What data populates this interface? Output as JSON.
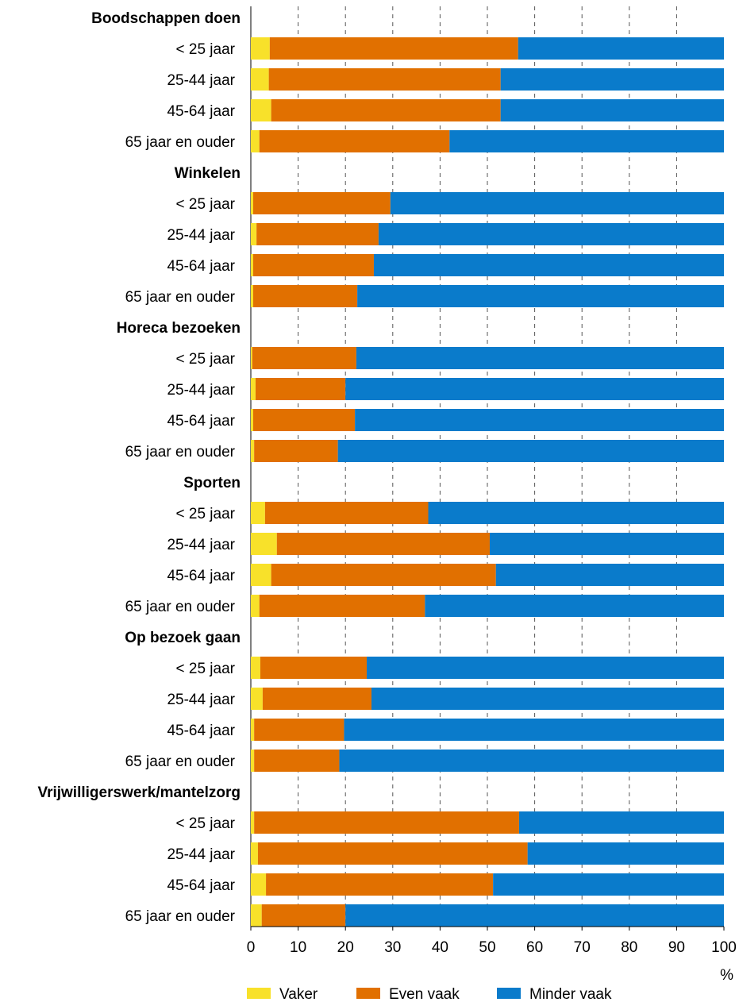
{
  "chart_data": {
    "type": "bar",
    "orientation": "horizontal",
    "stacked": true,
    "percent_stacked": true,
    "xlim": [
      0,
      100
    ],
    "xticks": [
      "0",
      "10",
      "20",
      "30",
      "40",
      "50",
      "60",
      "70",
      "80",
      "90",
      "100"
    ],
    "xunit": "%",
    "grid": "vertical dashed",
    "legend_position": "bottom",
    "colors": {
      "Vaker": "#f8e12a",
      "Even vaak": "#e17000",
      "Minder vaak": "#0a7bcb"
    },
    "series_names": [
      "Vaker",
      "Even vaak",
      "Minder vaak"
    ],
    "groups": [
      {
        "name": "Boodschappen doen",
        "rows": [
          {
            "label": "< 25 jaar",
            "values": [
              4,
              52.5,
              43.5
            ]
          },
          {
            "label": "25-44 jaar",
            "values": [
              3.8,
              49,
              47.2
            ]
          },
          {
            "label": "45-64 jaar",
            "values": [
              4.3,
              48.5,
              47.2
            ]
          },
          {
            "label": "65 jaar en ouder",
            "values": [
              1.8,
              40.2,
              58
            ]
          }
        ]
      },
      {
        "name": "Winkelen",
        "rows": [
          {
            "label": "< 25 jaar",
            "values": [
              0.5,
              29,
              70.5
            ]
          },
          {
            "label": "25-44 jaar",
            "values": [
              1.2,
              25.8,
              73
            ]
          },
          {
            "label": "45-64 jaar",
            "values": [
              0.5,
              25.5,
              74
            ]
          },
          {
            "label": "65 jaar en ouder",
            "values": [
              0.5,
              22,
              77.5
            ]
          }
        ]
      },
      {
        "name": "Horeca bezoeken",
        "rows": [
          {
            "label": "< 25 jaar",
            "values": [
              0.3,
              22,
              77.7
            ]
          },
          {
            "label": "25-44 jaar",
            "values": [
              1,
              19,
              80
            ]
          },
          {
            "label": "45-64 jaar",
            "values": [
              0.5,
              21.5,
              78
            ]
          },
          {
            "label": "65 jaar en ouder",
            "values": [
              0.7,
              17.7,
              81.6
            ]
          }
        ]
      },
      {
        "name": "Sporten",
        "rows": [
          {
            "label": "< 25 jaar",
            "values": [
              3,
              34.5,
              62.5
            ]
          },
          {
            "label": "25-44 jaar",
            "values": [
              5.5,
              45,
              49.5
            ]
          },
          {
            "label": "45-64 jaar",
            "values": [
              4.3,
              47.5,
              48.2
            ]
          },
          {
            "label": "65 jaar en ouder",
            "values": [
              1.8,
              35,
              63.2
            ]
          }
        ]
      },
      {
        "name": "Op bezoek gaan",
        "rows": [
          {
            "label": "< 25 jaar",
            "values": [
              2,
              22.5,
              75.5
            ]
          },
          {
            "label": "25-44 jaar",
            "values": [
              2.5,
              23,
              74.5
            ]
          },
          {
            "label": "45-64 jaar",
            "values": [
              0.7,
              19,
              80.3
            ]
          },
          {
            "label": "65 jaar en ouder",
            "values": [
              0.7,
              18,
              81.3
            ]
          }
        ]
      },
      {
        "name": "Vrijwilligerswerk/mantelzorg",
        "rows": [
          {
            "label": "< 25 jaar",
            "values": [
              0.7,
              56,
              43.3
            ]
          },
          {
            "label": "25-44 jaar",
            "values": [
              1.5,
              57,
              41.5
            ]
          },
          {
            "label": "45-64 jaar",
            "values": [
              3.2,
              48,
              48.8
            ]
          },
          {
            "label": "65 jaar en ouder",
            "values": [
              2.3,
              17.7,
              80
            ]
          }
        ]
      }
    ]
  }
}
